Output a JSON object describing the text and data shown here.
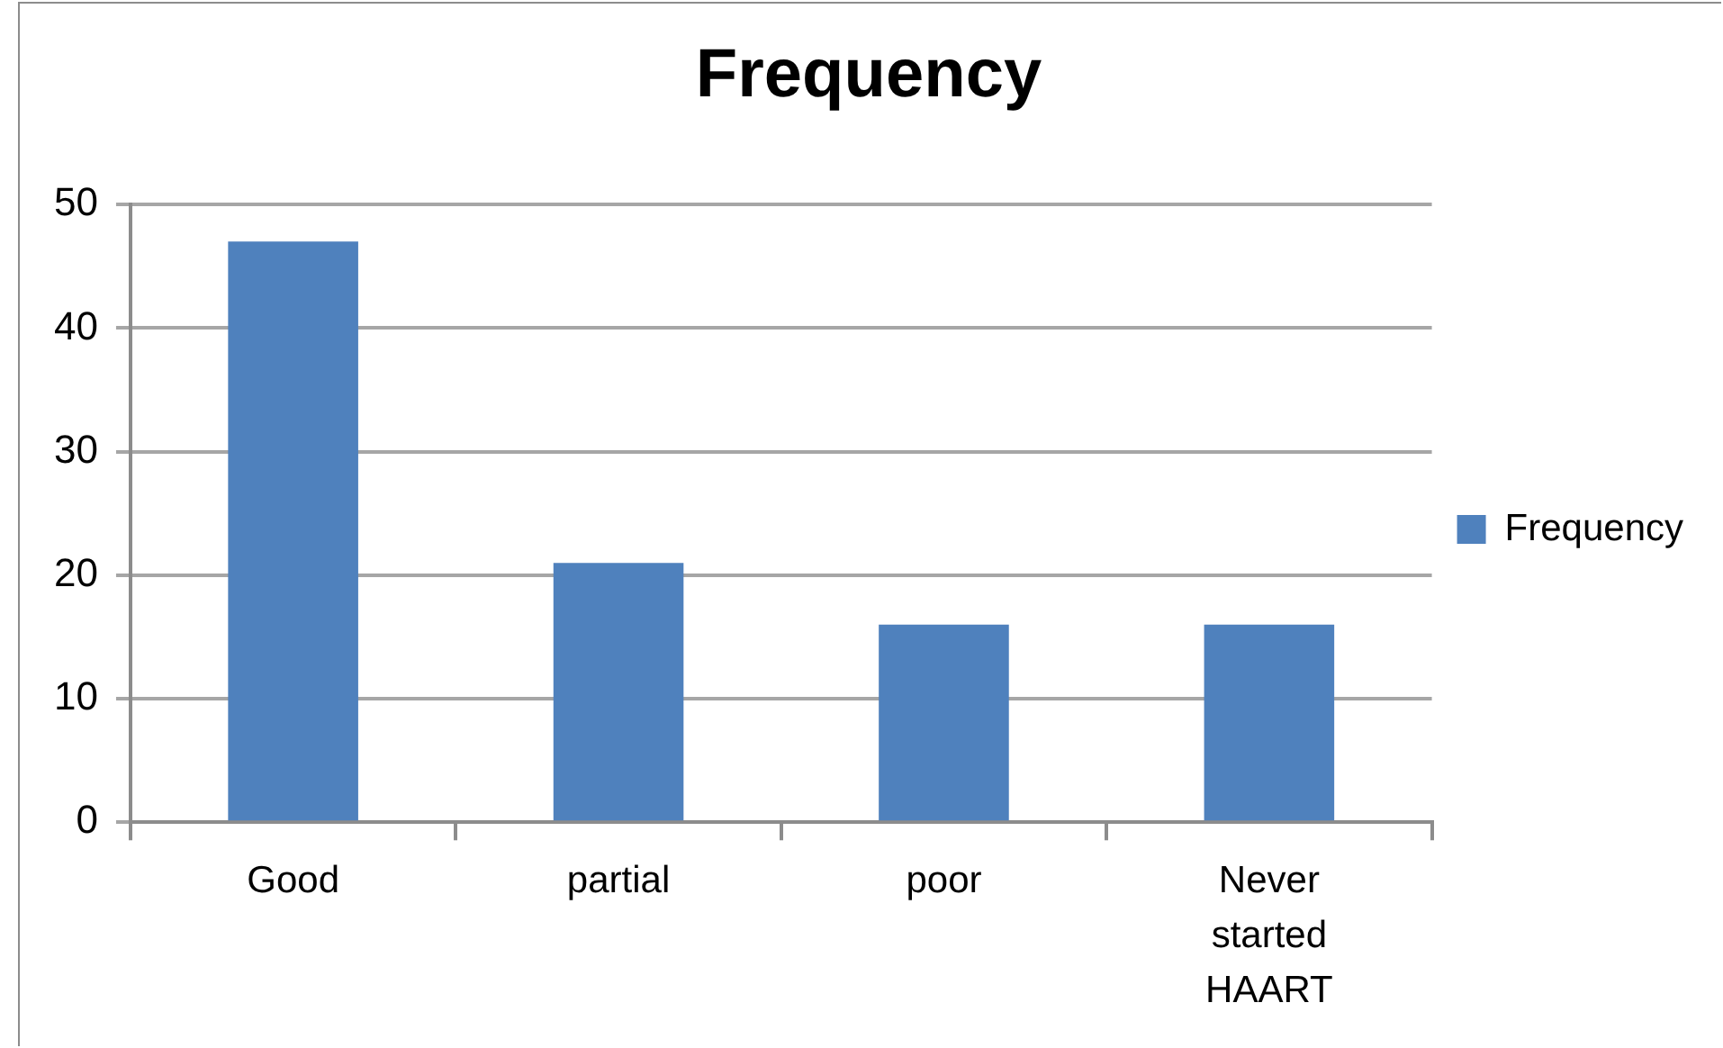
{
  "chart_data": {
    "type": "bar",
    "title": "Frequency",
    "categories": [
      "Good",
      "partial",
      "poor",
      "Never started HAART"
    ],
    "series": [
      {
        "name": "Frequency",
        "color": "#4f81bd",
        "values": [
          47,
          21,
          16,
          16
        ]
      }
    ],
    "ylim": [
      0,
      50
    ],
    "yticks": [
      0,
      10,
      20,
      30,
      40,
      50
    ],
    "grid": "y",
    "legend": "right"
  }
}
